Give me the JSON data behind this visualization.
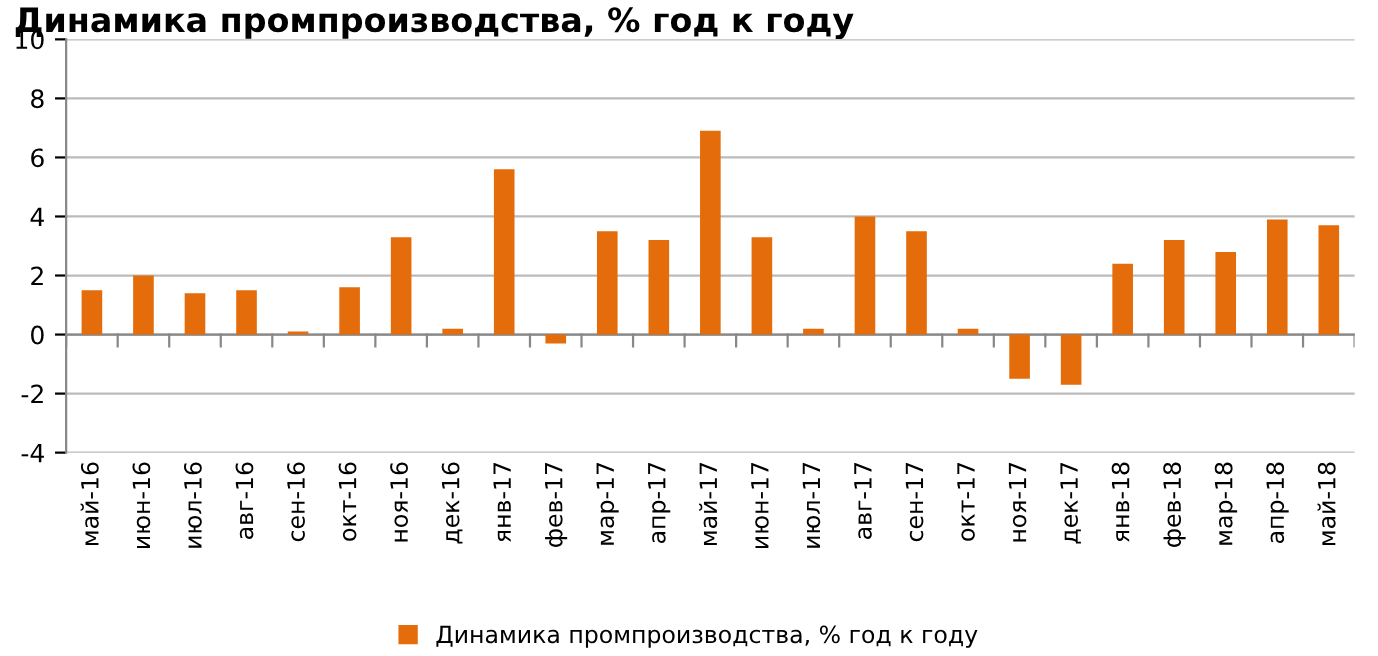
{
  "chart_data": {
    "type": "bar",
    "title": "Динамика промпроизводства, % год к году",
    "categories": [
      "май-16",
      "июн-16",
      "июл-16",
      "авг-16",
      "сен-16",
      "окт-16",
      "ноя-16",
      "дек-16",
      "янв-17",
      "фев-17",
      "мар-17",
      "апр-17",
      "май-17",
      "июн-17",
      "июл-17",
      "авг-17",
      "сен-17",
      "окт-17",
      "ноя-17",
      "дек-17",
      "янв-18",
      "фев-18",
      "мар-18",
      "апр-18",
      "май-18"
    ],
    "series": [
      {
        "name": "Динамика промпроизводства, % год к году",
        "color": "#e46c0a",
        "values": [
          1.5,
          2.0,
          1.4,
          1.5,
          0.1,
          1.6,
          3.3,
          0.2,
          5.6,
          -0.3,
          3.5,
          3.2,
          6.9,
          3.3,
          0.2,
          4.0,
          3.5,
          0.2,
          -1.5,
          -1.7,
          2.4,
          3.2,
          2.8,
          3.9,
          3.7
        ]
      }
    ],
    "ylim": [
      -4,
      10
    ],
    "yticks": [
      -4,
      -2,
      0,
      2,
      4,
      6,
      8,
      10
    ],
    "grid": "y",
    "legend": "bottom"
  }
}
